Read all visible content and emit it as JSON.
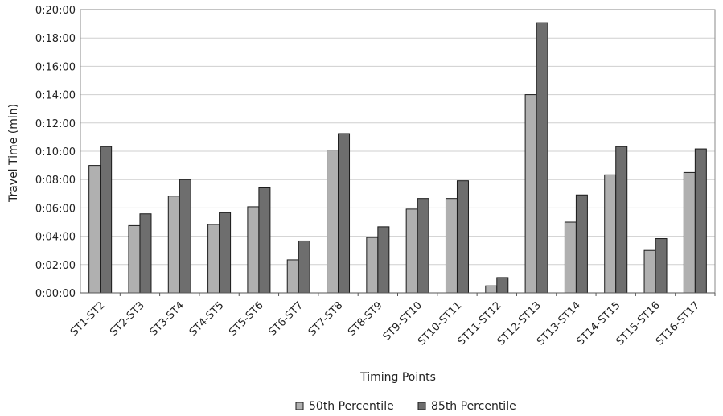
{
  "chart_data": {
    "type": "bar",
    "title": "",
    "xlabel": "Timing Points",
    "ylabel": "Travel Time (min)",
    "categories": [
      "ST1-ST2",
      "ST2-ST3",
      "ST3-ST4",
      "ST4-ST5",
      "ST5-ST6",
      "ST6-ST7",
      "ST7-ST8",
      "ST8-ST9",
      "ST9-ST10",
      "ST10-ST11",
      "ST11-ST12",
      "ST12-ST13",
      "ST13-ST14",
      "ST14-ST15",
      "ST15-ST16",
      "ST16-ST17"
    ],
    "series": [
      {
        "name": "50th Percentile",
        "color": "#b0b0b0",
        "values": [
          "0:09:00",
          "0:04:45",
          "0:06:50",
          "0:04:50",
          "0:06:05",
          "0:02:20",
          "0:10:05",
          "0:03:55",
          "0:05:55",
          "0:06:40",
          "0:00:30",
          "0:14:00",
          "0:05:00",
          "0:08:20",
          "0:03:00",
          "0:08:30"
        ]
      },
      {
        "name": "85th Percentile",
        "color": "#6e6e6e",
        "values": [
          "0:10:20",
          "0:05:35",
          "0:08:00",
          "0:05:40",
          "0:07:25",
          "0:03:40",
          "0:11:15",
          "0:04:40",
          "0:06:40",
          "0:07:55",
          "0:01:05",
          "0:19:05",
          "0:06:55",
          "0:10:20",
          "0:03:50",
          "0:10:10"
        ]
      }
    ],
    "ylim": [
      "0:00:00",
      "0:20:00"
    ],
    "y_ticks": [
      "0:00:00",
      "0:02:00",
      "0:04:00",
      "0:06:00",
      "0:08:00",
      "0:10:00",
      "0:12:00",
      "0:14:00",
      "0:16:00",
      "0:18:00",
      "0:20:00"
    ],
    "grid": true,
    "legend_position": "bottom"
  }
}
